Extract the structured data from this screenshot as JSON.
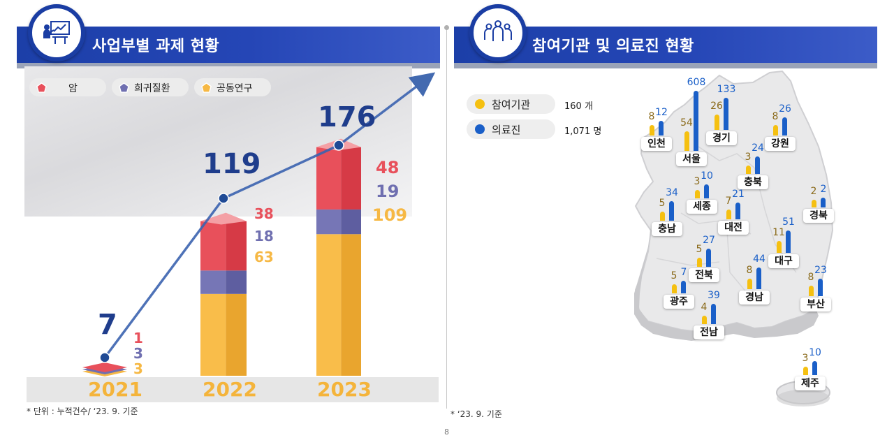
{
  "left_panel": {
    "title": "사업부별 과제 현황",
    "legend": [
      {
        "label": "암",
        "color": "#e8505b"
      },
      {
        "label": "희귀질환",
        "color": "#6f6fb0"
      },
      {
        "label": "공동연구",
        "color": "#f6b844"
      }
    ],
    "footnote": "* 단위 : 누적건수/ ‘23. 9. 기준"
  },
  "right_panel": {
    "title": "참여기관 및 의료진 현황",
    "legend": [
      {
        "label": "참여기관",
        "value": "160 개",
        "color": "#f5c011"
      },
      {
        "label": "의료진",
        "value": "1,071 명",
        "color": "#1a5fc8"
      }
    ],
    "footnote": "* ‘23. 9. 기준"
  },
  "page_number": "8",
  "chart_data": [
    {
      "type": "bar",
      "stacked": true,
      "categories": [
        "2021",
        "2022",
        "2023"
      ],
      "totals": [
        "7",
        "119",
        "176"
      ],
      "series": [
        {
          "name": "암",
          "values": [
            1,
            38,
            48
          ],
          "labels": [
            "1",
            "38",
            "48"
          ],
          "color": "#e8505b"
        },
        {
          "name": "희귀질환",
          "values": [
            3,
            18,
            19
          ],
          "labels": [
            "3",
            "18",
            "19"
          ],
          "color": "#6f6fb0"
        },
        {
          "name": "공동연구",
          "values": [
            3,
            63,
            109
          ],
          "labels": [
            "3",
            "63",
            "109"
          ],
          "color": "#f6b844"
        }
      ],
      "trend_line": [
        7,
        119,
        176
      ]
    },
    {
      "type": "bar",
      "categories": [
        "인천",
        "서울",
        "경기",
        "강원",
        "충북",
        "세종",
        "충남",
        "대전",
        "경북",
        "대구",
        "전북",
        "광주",
        "경남",
        "부산",
        "전남",
        "제주"
      ],
      "series": [
        {
          "name": "참여기관",
          "values": [
            8,
            54,
            26,
            8,
            3,
            3,
            5,
            7,
            2,
            11,
            5,
            5,
            8,
            8,
            4,
            3
          ],
          "color": "#f5c011"
        },
        {
          "name": "의료진",
          "values": [
            12,
            608,
            133,
            26,
            24,
            10,
            34,
            21,
            2,
            51,
            27,
            7,
            44,
            23,
            39,
            10
          ],
          "color": "#1a5fc8"
        }
      ]
    }
  ]
}
